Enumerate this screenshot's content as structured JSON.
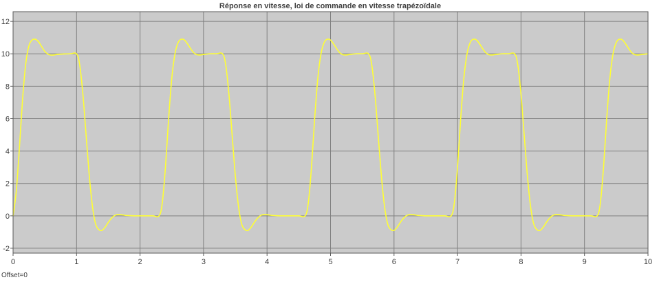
{
  "window": {
    "offset_label": "Offset=0"
  },
  "colors": {
    "plot_background": "#cbcbcb",
    "grid": "#7f7f7f",
    "trace": "#ffff33",
    "frame": "#5a5a5a"
  },
  "chart_data": {
    "type": "line",
    "title": "Réponse en vitesse, loi de commande en vitesse trapézoïdale",
    "xlabel": "",
    "ylabel": "",
    "xlim": [
      0,
      10
    ],
    "ylim": [
      -2.3,
      12.6
    ],
    "grid": true,
    "xticks": [
      0,
      1,
      2,
      3,
      4,
      5,
      6,
      7,
      8,
      9,
      10
    ],
    "xtick_labels": [
      "0",
      "1",
      "2",
      "3",
      "4",
      "5",
      "6",
      "7",
      "8",
      "9",
      "10"
    ],
    "yticks": [
      -2,
      0,
      2,
      4,
      6,
      8,
      10,
      12
    ],
    "ytick_labels": [
      "-2",
      "0",
      "2",
      "4",
      "6",
      "8",
      "10",
      "12"
    ],
    "series": [
      {
        "name": "",
        "x": [
          0,
          0.05,
          0.1,
          0.15,
          0.2,
          0.25,
          0.3,
          0.35,
          0.4,
          0.45,
          0.5,
          0.55,
          0.6,
          0.65,
          0.7,
          0.8,
          0.9,
          1.0,
          1.05,
          1.1,
          1.15,
          1.2,
          1.25,
          1.3,
          1.35,
          1.4,
          1.45,
          1.5,
          1.55,
          1.6,
          1.65,
          1.7,
          1.8,
          1.9,
          2.0,
          2.1,
          2.2,
          2.3,
          2.35,
          2.4,
          2.45,
          2.5,
          2.55,
          2.6,
          2.65,
          2.7,
          2.75,
          2.8,
          2.85,
          2.9,
          2.95,
          3.0,
          3.1,
          3.2,
          3.3,
          3.35,
          3.4,
          3.45,
          3.5,
          3.55,
          3.6,
          3.65,
          3.7,
          3.75,
          3.8,
          3.85,
          3.9,
          3.95,
          4.0,
          4.1,
          4.2,
          4.3,
          4.4,
          4.5,
          4.6,
          4.65,
          4.7,
          4.75,
          4.8,
          4.85,
          4.9,
          4.95,
          5.0,
          5.05,
          5.1,
          5.15,
          5.2,
          5.25,
          5.3,
          5.4,
          5.5,
          5.6,
          5.65,
          5.7,
          5.75,
          5.8,
          5.85,
          5.9,
          5.95,
          6.0,
          6.05,
          6.1,
          6.15,
          6.2,
          6.25,
          6.3,
          6.4,
          6.5,
          6.6,
          6.7,
          6.8,
          6.9,
          6.95,
          7.0,
          7.05,
          7.1,
          7.15,
          7.2,
          7.25,
          7.3,
          7.35,
          7.4,
          7.45,
          7.5,
          7.55,
          7.6,
          7.7,
          7.8,
          7.9,
          7.95,
          8.0,
          8.05,
          8.1,
          8.15,
          8.2,
          8.25,
          8.3,
          8.35,
          8.4,
          8.45,
          8.5,
          8.55,
          8.6,
          8.7,
          8.8,
          8.9,
          9.0,
          9.1,
          9.2,
          9.25,
          9.3,
          9.35,
          9.4,
          9.45,
          9.5,
          9.55,
          9.6,
          9.65,
          9.7,
          9.75,
          9.8,
          9.85,
          9.9,
          10.0
        ],
        "y": [
          0,
          1.5,
          4.2,
          7.2,
          9.4,
          10.5,
          10.85,
          10.9,
          10.75,
          10.45,
          10.15,
          9.98,
          9.92,
          9.93,
          9.97,
          9.99,
          10.0,
          10.0,
          9.3,
          7.5,
          5.0,
          2.5,
          0.6,
          -0.5,
          -0.85,
          -0.9,
          -0.7,
          -0.4,
          -0.15,
          0.02,
          0.08,
          0.07,
          0.02,
          0.0,
          0.0,
          0.0,
          0.0,
          0.0,
          0.8,
          3.0,
          6.0,
          8.5,
          10.0,
          10.7,
          10.9,
          10.85,
          10.6,
          10.3,
          10.05,
          9.94,
          9.93,
          9.96,
          10.0,
          10.0,
          10.0,
          9.3,
          7.5,
          5.0,
          2.5,
          0.6,
          -0.5,
          -0.85,
          -0.9,
          -0.7,
          -0.4,
          -0.15,
          0.02,
          0.08,
          0.07,
          0.02,
          0.0,
          0.0,
          0.0,
          0.0,
          0.0,
          0.8,
          3.0,
          6.0,
          8.5,
          10.0,
          10.7,
          10.9,
          10.85,
          10.6,
          10.3,
          10.05,
          9.94,
          9.93,
          9.96,
          10.0,
          10.0,
          10.0,
          9.3,
          7.5,
          5.0,
          2.5,
          0.6,
          -0.5,
          -0.85,
          -0.9,
          -0.7,
          -0.4,
          -0.15,
          0.02,
          0.08,
          0.07,
          0.02,
          0.0,
          0.0,
          0.0,
          0.0,
          0.0,
          0.8,
          3.0,
          6.0,
          8.5,
          10.0,
          10.7,
          10.9,
          10.85,
          10.6,
          10.3,
          10.05,
          9.94,
          9.93,
          9.96,
          10.0,
          10.0,
          10.0,
          9.3,
          7.5,
          5.0,
          2.5,
          0.6,
          -0.5,
          -0.85,
          -0.9,
          -0.7,
          -0.4,
          -0.15,
          0.02,
          0.08,
          0.07,
          0.02,
          0.0,
          0.0,
          0.0,
          0.0,
          0.0,
          0.8,
          3.0,
          6.0,
          8.5,
          10.0,
          10.7,
          10.9,
          10.85,
          10.6,
          10.3,
          10.05,
          9.94,
          9.93,
          9.96,
          10.0
        ]
      }
    ]
  }
}
